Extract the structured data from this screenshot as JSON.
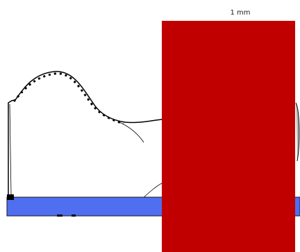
{
  "scale_label": "1 mm"
}
